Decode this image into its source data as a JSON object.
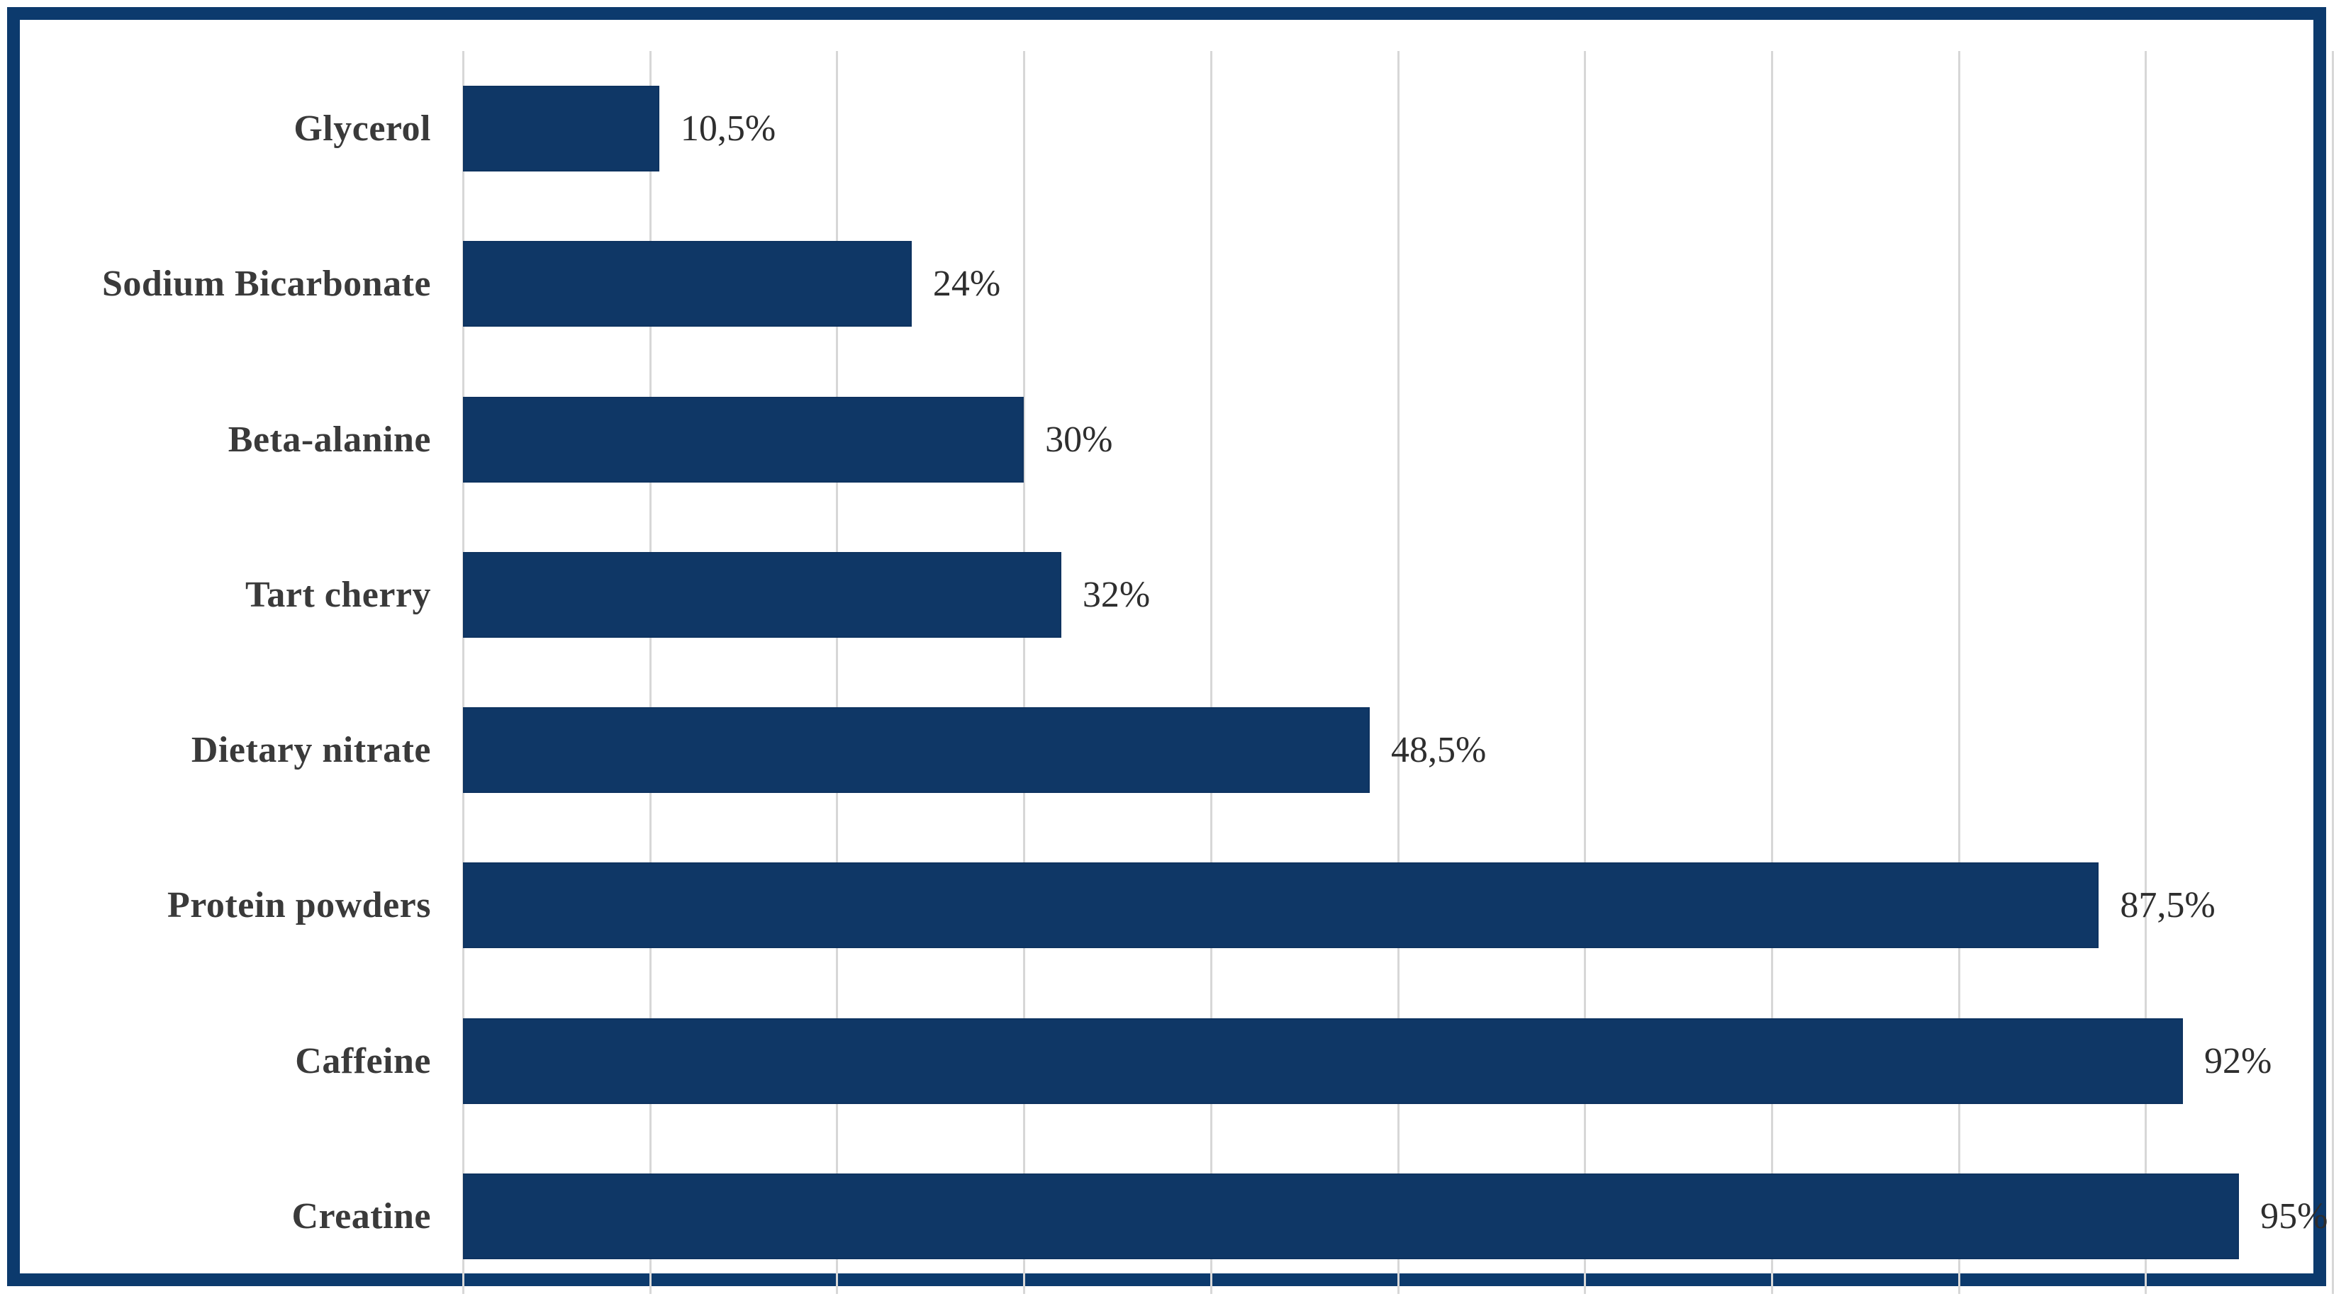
{
  "chart_data": {
    "type": "bar",
    "orientation": "horizontal",
    "title": "",
    "xlabel": "",
    "ylabel": "",
    "categories": [
      "Glycerol",
      "Sodium Bicarbonate",
      "Beta-alanine",
      "Tart cherry",
      "Dietary nitrate",
      "Protein powders",
      "Caffeine",
      "Creatine"
    ],
    "values": [
      10.5,
      24,
      30,
      32,
      48.5,
      87.5,
      92,
      95
    ],
    "value_labels": [
      "10,5%",
      "24%",
      "30%",
      "32%",
      "48,5%",
      "87,5%",
      "92%",
      "95%"
    ],
    "xlim": [
      0,
      100
    ],
    "gridline_values": [
      0,
      10,
      20,
      30,
      40,
      50,
      60,
      70,
      80,
      90,
      100
    ],
    "grid": "vertical-only",
    "legend_position": "none",
    "axis_tick_labels_visible": false
  },
  "style": {
    "bar_color": "#0f3766",
    "frame_border_color": "#0c3a6d",
    "gridline_color": "#d7d7d7",
    "category_label_color": "#3a3a3a",
    "value_label_color": "#2e2e2e",
    "background_color": "#ffffff"
  }
}
